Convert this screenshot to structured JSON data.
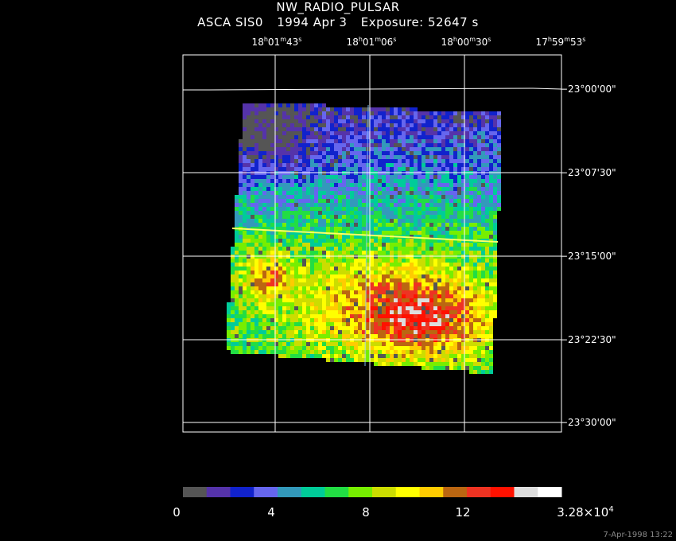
{
  "header": {
    "object": "NW_RADIO_PULSAR",
    "instrument": "ASCA SIS0",
    "date": "1994 Apr  3",
    "exposure": "Exposure: 52647  s"
  },
  "ra_ticks": [
    {
      "h": "18",
      "m": "01",
      "s": "43"
    },
    {
      "h": "18",
      "m": "01",
      "s": "06"
    },
    {
      "h": "18",
      "m": "00",
      "s": "30"
    },
    {
      "h": "17",
      "m": "59",
      "s": "53"
    }
  ],
  "dec_ticks": [
    "−23°00'00\"",
    "−23°07'30\"",
    "−23°15'00\"",
    "−23°22'30\"",
    "−23°30'00\""
  ],
  "colorbar": {
    "colors": [
      "#555555",
      "#5533aa",
      "#1122cc",
      "#6666ee",
      "#3399bb",
      "#00cc99",
      "#22dd44",
      "#77ee00",
      "#ccdd00",
      "#ffff00",
      "#ffcc00",
      "#bb6611",
      "#ee3322",
      "#ff1100",
      "#dddddd",
      "#ffffff"
    ],
    "labels": [
      "0",
      "4",
      "8",
      "12"
    ],
    "max_label_mantissa": "3.28×10",
    "max_label_exp": "4"
  },
  "timestamp": "7-Apr-1998 13:22"
}
